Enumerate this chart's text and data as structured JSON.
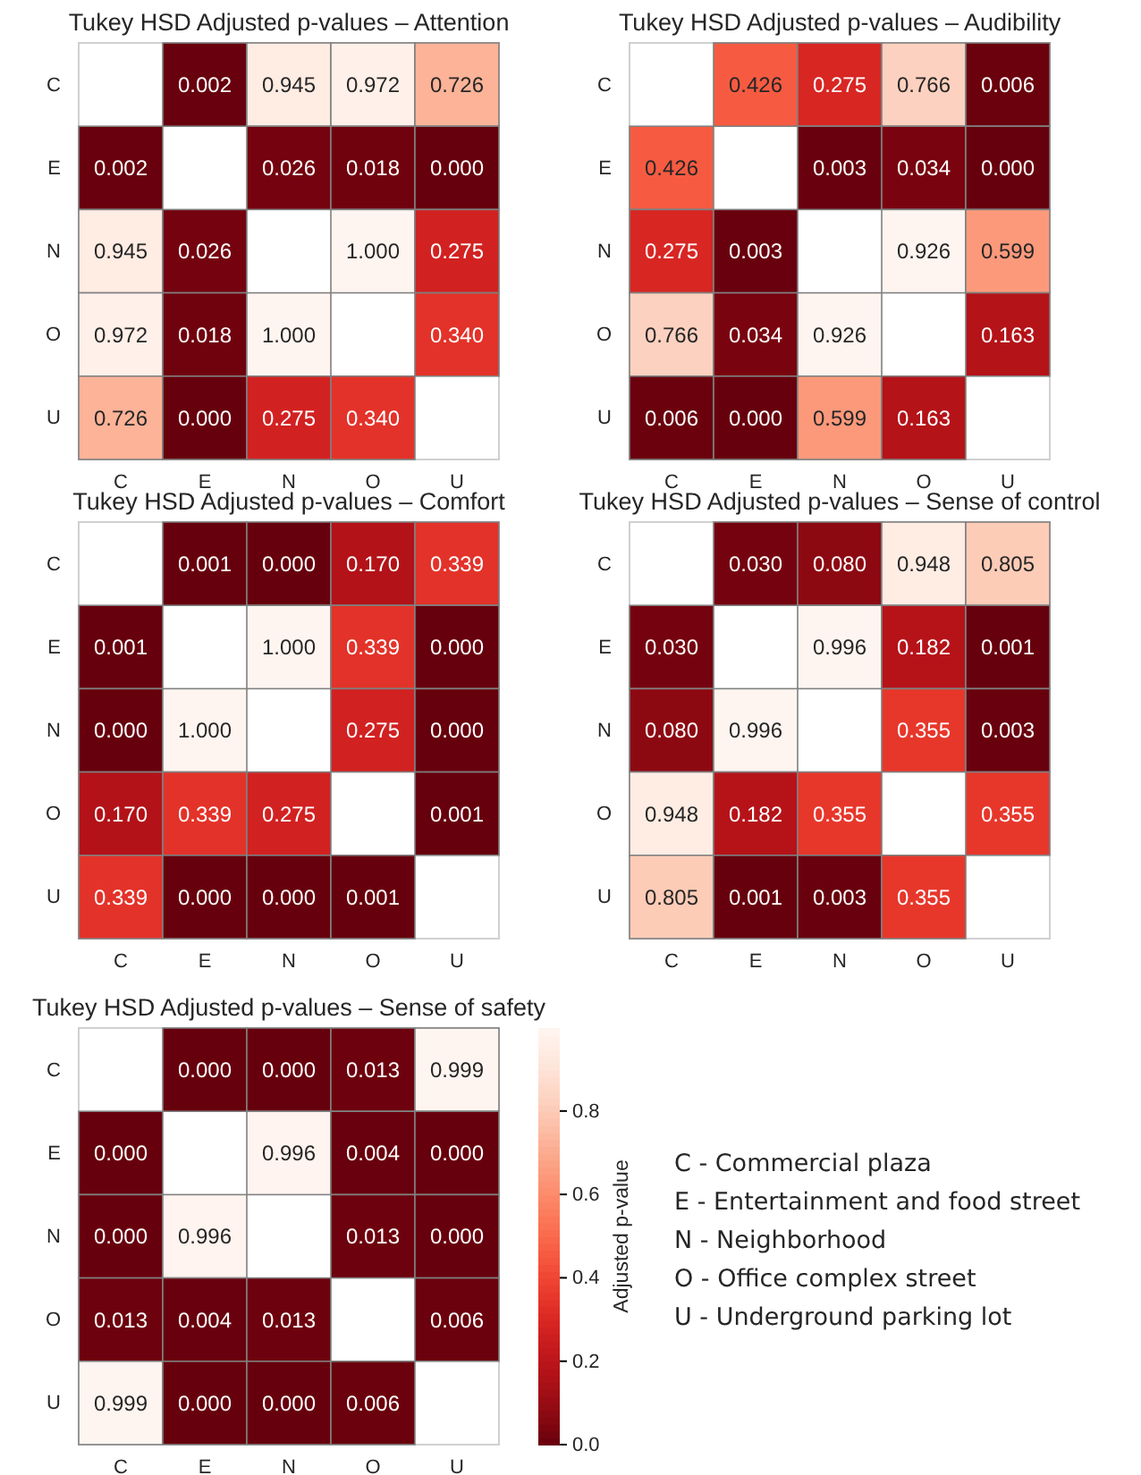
{
  "chart_data": [
    {
      "type": "heatmap",
      "title": "Tukey HSD Adjusted p-values – Attention",
      "categories": [
        "C",
        "E",
        "N",
        "O",
        "U"
      ],
      "y_categories": [
        "C",
        "E",
        "N",
        "O",
        "U"
      ],
      "cells": [
        [
          null,
          0.002,
          0.945,
          0.972,
          0.726
        ],
        [
          0.002,
          null,
          0.026,
          0.018,
          0.0
        ],
        [
          0.945,
          0.026,
          null,
          1.0,
          0.275
        ],
        [
          0.972,
          0.018,
          1.0,
          null,
          0.34
        ],
        [
          0.726,
          0.0,
          0.275,
          0.34,
          null
        ]
      ],
      "cell_labels": [
        [
          null,
          "0.002",
          "0.945",
          "0.972",
          "0.726"
        ],
        [
          "0.002",
          null,
          "0.026",
          "0.018",
          "0.000"
        ],
        [
          "0.945",
          "0.026",
          null,
          "1.000",
          "0.275"
        ],
        [
          "0.972",
          "0.018",
          "1.000",
          null,
          "0.340"
        ],
        [
          "0.726",
          "0.000",
          "0.275",
          "0.340",
          null
        ]
      ]
    },
    {
      "type": "heatmap",
      "title": "Tukey HSD Adjusted p-values – Audibility",
      "categories": [
        "C",
        "E",
        "N",
        "O",
        "U"
      ],
      "y_categories": [
        "C",
        "E",
        "N",
        "O",
        "U"
      ],
      "cells": [
        [
          null,
          0.426,
          0.275,
          0.766,
          0.006
        ],
        [
          0.426,
          null,
          0.003,
          0.034,
          0.0
        ],
        [
          0.275,
          0.003,
          null,
          0.926,
          0.599
        ],
        [
          0.766,
          0.034,
          0.926,
          null,
          0.163
        ],
        [
          0.006,
          0.0,
          0.599,
          0.163,
          null
        ]
      ],
      "cell_labels": [
        [
          null,
          "0.426",
          "0.275",
          "0.766",
          "0.006"
        ],
        [
          "0.426",
          null,
          "0.003",
          "0.034",
          "0.000"
        ],
        [
          "0.275",
          "0.003",
          null,
          "0.926",
          "0.599"
        ],
        [
          "0.766",
          "0.034",
          "0.926",
          null,
          "0.163"
        ],
        [
          "0.006",
          "0.000",
          "0.599",
          "0.163",
          null
        ]
      ]
    },
    {
      "type": "heatmap",
      "title": "Tukey HSD Adjusted p-values – Comfort",
      "categories": [
        "C",
        "E",
        "N",
        "O",
        "U"
      ],
      "y_categories": [
        "C",
        "E",
        "N",
        "O",
        "U"
      ],
      "cells": [
        [
          null,
          0.001,
          0.0,
          0.17,
          0.339
        ],
        [
          0.001,
          null,
          1.0,
          0.339,
          0.0
        ],
        [
          0.0,
          1.0,
          null,
          0.275,
          0.0
        ],
        [
          0.17,
          0.339,
          0.275,
          null,
          0.001
        ],
        [
          0.339,
          0.0,
          0.0,
          0.001,
          null
        ]
      ],
      "cell_labels": [
        [
          null,
          "0.001",
          "0.000",
          "0.170",
          "0.339"
        ],
        [
          "0.001",
          null,
          "1.000",
          "0.339",
          "0.000"
        ],
        [
          "0.000",
          "1.000",
          null,
          "0.275",
          "0.000"
        ],
        [
          "0.170",
          "0.339",
          "0.275",
          null,
          "0.001"
        ],
        [
          "0.339",
          "0.000",
          "0.000",
          "0.001",
          null
        ]
      ]
    },
    {
      "type": "heatmap",
      "title": "Tukey HSD Adjusted p-values – Sense of control",
      "categories": [
        "C",
        "E",
        "N",
        "O",
        "U"
      ],
      "y_categories": [
        "C",
        "E",
        "N",
        "O",
        "U"
      ],
      "cells": [
        [
          null,
          0.03,
          0.08,
          0.948,
          0.805
        ],
        [
          0.03,
          null,
          0.996,
          0.182,
          0.001
        ],
        [
          0.08,
          0.996,
          null,
          0.355,
          0.003
        ],
        [
          0.948,
          0.182,
          0.355,
          null,
          0.355
        ],
        [
          0.805,
          0.001,
          0.003,
          0.355,
          null
        ]
      ],
      "cell_labels": [
        [
          null,
          "0.030",
          "0.080",
          "0.948",
          "0.805"
        ],
        [
          "0.030",
          null,
          "0.996",
          "0.182",
          "0.001"
        ],
        [
          "0.080",
          "0.996",
          null,
          "0.355",
          "0.003"
        ],
        [
          "0.948",
          "0.182",
          "0.355",
          null,
          "0.355"
        ],
        [
          "0.805",
          "0.001",
          "0.003",
          "0.355",
          null
        ]
      ]
    },
    {
      "type": "heatmap",
      "title": "Tukey HSD Adjusted p-values – Sense of safety",
      "categories": [
        "C",
        "E",
        "N",
        "O",
        "U"
      ],
      "y_categories": [
        "C",
        "E",
        "N",
        "O",
        "U"
      ],
      "cells": [
        [
          null,
          0.0,
          0.0,
          0.013,
          0.999
        ],
        [
          0.0,
          null,
          0.996,
          0.004,
          0.0
        ],
        [
          0.0,
          0.996,
          null,
          0.013,
          0.0
        ],
        [
          0.013,
          0.004,
          0.013,
          null,
          0.006
        ],
        [
          0.999,
          0.0,
          0.0,
          0.006,
          null
        ]
      ],
      "cell_labels": [
        [
          null,
          "0.000",
          "0.000",
          "0.013",
          "0.999"
        ],
        [
          "0.000",
          null,
          "0.996",
          "0.004",
          "0.000"
        ],
        [
          "0.000",
          "0.996",
          null,
          "0.013",
          "0.000"
        ],
        [
          "0.013",
          "0.004",
          "0.013",
          null,
          "0.006"
        ],
        [
          "0.999",
          "0.000",
          "0.000",
          "0.006",
          null
        ]
      ],
      "clim": [
        0,
        0.999
      ],
      "cticks": [
        {
          "value": 0,
          "label": "0.0"
        },
        {
          "value": 0.2,
          "label": "0.2"
        },
        {
          "value": 0.4,
          "label": "0.4"
        },
        {
          "value": 0.6,
          "label": "0.6"
        },
        {
          "value": 0.8,
          "label": "0.8"
        }
      ],
      "clabel": "Adjusted p-value",
      "annotations": [
        "C - Commercial plaza",
        "E - Entertainment and food street",
        "N - Neighborhood",
        "O - Office complex street",
        "U - Underground parking lot"
      ]
    }
  ]
}
